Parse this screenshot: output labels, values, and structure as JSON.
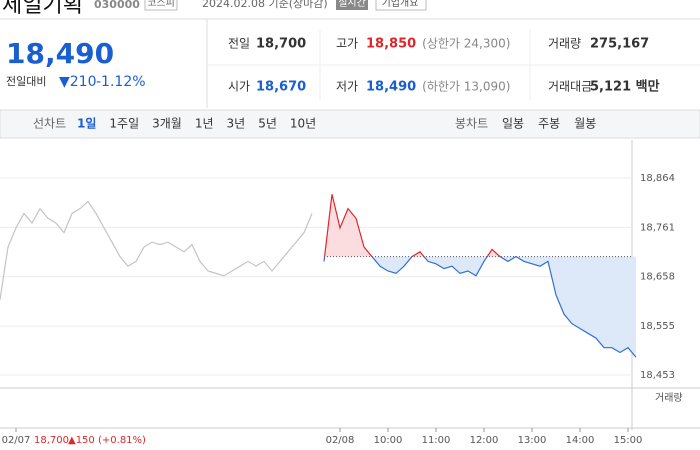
{
  "header": {
    "name": "제일기획",
    "code": "030000",
    "market": "코스피",
    "date": "2024.02.08 기준(장마감)",
    "realtime": "실시간",
    "company_info": "기업개요"
  },
  "quote": {
    "price": "18,490",
    "change_label": "전일대비",
    "change": "▼210",
    "change_pct": "-1.12%"
  },
  "stats": [
    {
      "label": "전일",
      "value": "18,700"
    },
    {
      "label": "고가",
      "value": "18,850",
      "extra": "(상한가 24,300)"
    },
    {
      "label": "거래량",
      "value": "275,167"
    },
    {
      "label": "시가",
      "value": "18,670"
    },
    {
      "label": "저가",
      "value": "18,490",
      "extra": "(하한가 13,090)"
    },
    {
      "label": "거래대금",
      "value": "5,121 백만"
    }
  ],
  "tabs": {
    "line_chart": "선차트",
    "periods": [
      "1일",
      "1주일",
      "3개월",
      "1년",
      "3년",
      "5년",
      "10년"
    ],
    "candle_chart": "봉차트",
    "candles": [
      "일봉",
      "주봉",
      "월봉"
    ]
  },
  "chart_data": {
    "type": "line",
    "categories": [
      null,
      null,
      "02/07",
      null,
      null,
      null,
      null,
      null,
      null,
      null,
      null,
      null,
      null,
      null,
      null,
      null,
      null,
      null,
      null,
      null,
      null,
      null,
      null,
      null,
      null,
      null,
      null,
      null,
      null,
      null,
      null,
      null,
      null,
      null,
      null,
      null,
      null,
      null,
      null,
      null,
      null,
      null,
      "02/08",
      null,
      null,
      null,
      null,
      null,
      "10:00",
      null,
      null,
      null,
      null,
      null,
      "11:00",
      null,
      null,
      null,
      null,
      null,
      "12:00",
      null,
      null,
      null,
      null,
      null,
      "13:00",
      null,
      null,
      null,
      null,
      null,
      "14:00",
      null,
      null,
      null,
      null,
      null,
      "15:00",
      null
    ],
    "series": [
      {
        "name": "02/07",
        "color": "#c4c4c4",
        "values": [
          18610,
          18720,
          18760,
          18790,
          18770,
          18800,
          18780,
          18770,
          18750,
          18790,
          18800,
          18815,
          18790,
          18760,
          18730,
          18700,
          18680,
          18690,
          18720,
          18730,
          18725,
          18730,
          18720,
          18710,
          18725,
          18690,
          18670,
          18665,
          18660,
          18670,
          18680,
          18690,
          18680,
          18690,
          18670,
          18690,
          18710,
          18730,
          18750,
          18790,
          null,
          null,
          null,
          null,
          null,
          null,
          null,
          null,
          null,
          null,
          null,
          null,
          null,
          null,
          null,
          null,
          null,
          null,
          null,
          null,
          null,
          null,
          null,
          null,
          null,
          null,
          null,
          null,
          null,
          null,
          null,
          null,
          null,
          null,
          null,
          null,
          null,
          null,
          null,
          null
        ]
      },
      {
        "name": "02/08",
        "color": "#e0262a",
        "color_down": "#2f6fd6",
        "values": [
          null,
          null,
          null,
          null,
          null,
          null,
          null,
          null,
          null,
          null,
          null,
          null,
          null,
          null,
          null,
          null,
          null,
          null,
          null,
          null,
          null,
          null,
          null,
          null,
          null,
          null,
          null,
          null,
          null,
          null,
          null,
          null,
          null,
          null,
          null,
          null,
          null,
          null,
          null,
          null,
          18690,
          18830,
          18760,
          18800,
          18780,
          18720,
          18700,
          18680,
          18670,
          18665,
          18680,
          18700,
          18710,
          18690,
          18685,
          18675,
          18680,
          18665,
          18670,
          18660,
          18690,
          18715,
          18700,
          18690,
          18700,
          18690,
          18685,
          18680,
          18690,
          18620,
          18580,
          18560,
          18550,
          18540,
          18530,
          18510,
          18510,
          18500,
          18510,
          18490
        ]
      }
    ],
    "reference_line": 18700,
    "ylim": [
      18453,
      18864
    ],
    "yticks": [
      {
        "value": 18864,
        "label": "18,864"
      },
      {
        "value": 18761,
        "label": "18,761"
      },
      {
        "value": 18658,
        "label": "18,658"
      },
      {
        "value": 18555,
        "label": "18,555"
      },
      {
        "value": 18453,
        "label": "18,453"
      }
    ],
    "grid": true,
    "volume_label": "거래량",
    "prev_summary": {
      "close": "18,700",
      "change": "▲150",
      "change_pct": "(+0.81%)"
    }
  }
}
